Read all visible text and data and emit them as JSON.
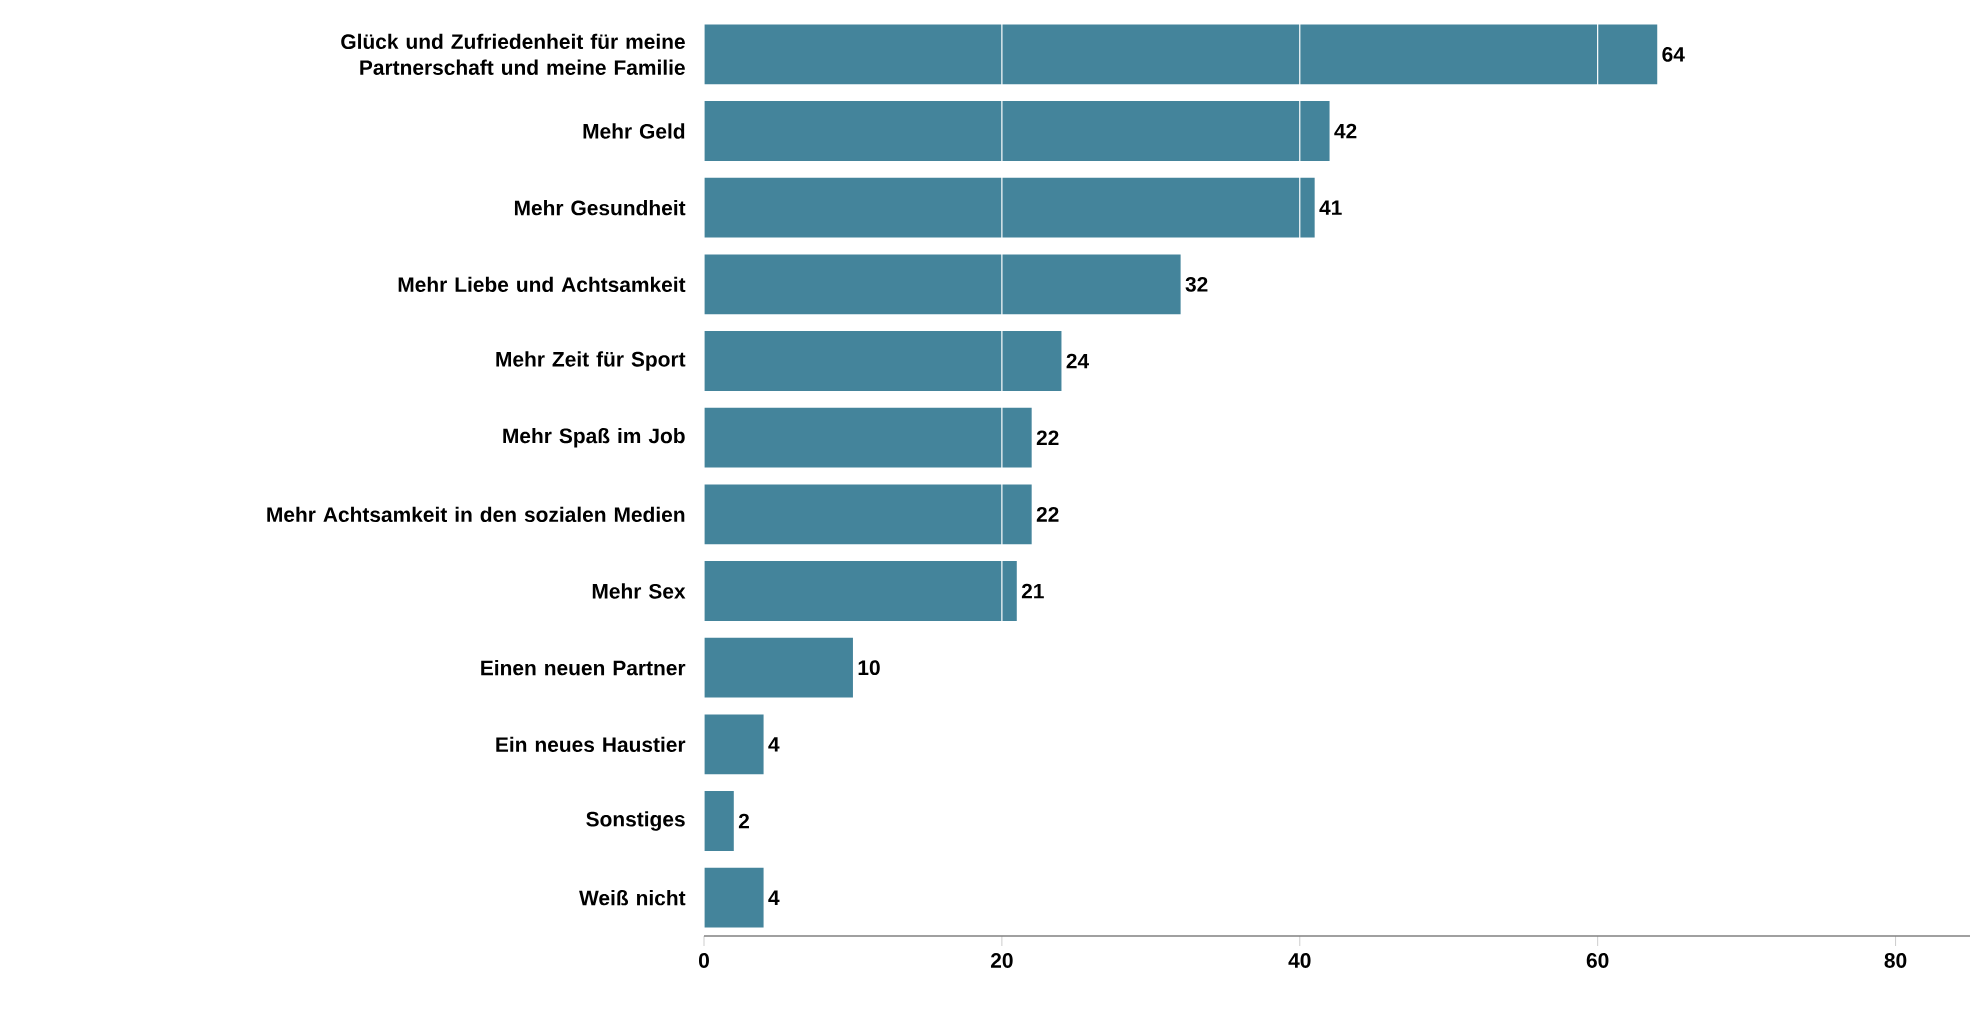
{
  "chart_data": {
    "type": "bar",
    "orientation": "horizontal",
    "categories": [
      "Glück und Zufriedenheit für meine Partnerschaft und meine Familie",
      "Mehr Geld",
      "Mehr Gesundheit",
      "Mehr Liebe und Achtsamkeit",
      "Mehr Zeit für Sport",
      "Mehr Spaß im Job",
      "Mehr Achtsamkeit in den sozialen Medien",
      "Mehr Sex",
      "Einen neuen Partner",
      "Ein neues Haustier",
      "Sonstiges",
      "Weiß nicht"
    ],
    "values": [
      64,
      42,
      41,
      32,
      24,
      22,
      22,
      21,
      10,
      4,
      2,
      4
    ],
    "color": "#44849b",
    "xlim": [
      0,
      85
    ],
    "xticks": [
      0,
      20,
      40,
      60,
      80
    ],
    "grid": "x",
    "data_labels": true
  }
}
